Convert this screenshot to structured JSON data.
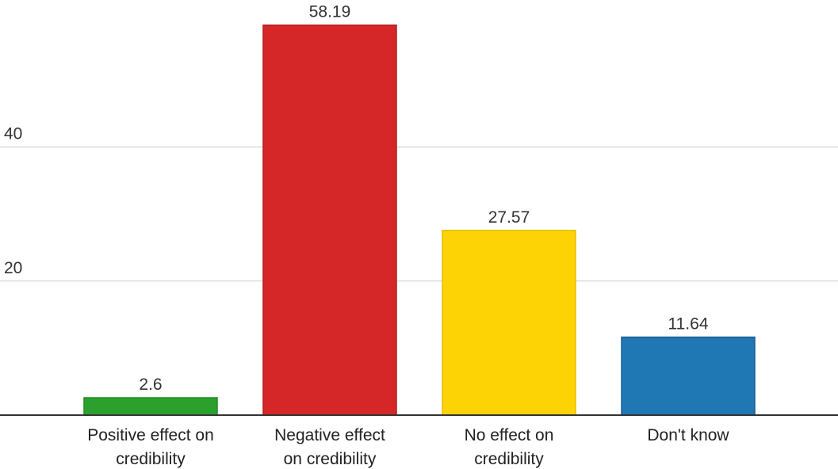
{
  "chart_data": {
    "type": "bar",
    "categories": [
      [
        "Positive effect on",
        "credibility"
      ],
      [
        "Negative effect",
        "on credibility"
      ],
      [
        "No effect on",
        "credibility"
      ],
      [
        "Don't know"
      ]
    ],
    "values": [
      2.6,
      58.19,
      27.57,
      11.64
    ],
    "value_labels": [
      "2.6",
      "58.19",
      "27.57",
      "11.64"
    ],
    "bar_colors": [
      "#2ca02c",
      "#d62728",
      "#fdd306",
      "#1f77b4"
    ],
    "bar_border_colors": [
      "#228b22",
      "#b71c1c",
      "#e6bd00",
      "#1a5f94"
    ],
    "y_ticks": [
      20,
      40
    ],
    "y_tick_labels": [
      "20",
      "40"
    ],
    "ylim": [
      0,
      60
    ],
    "grid": true,
    "legend": false,
    "title": "",
    "xlabel": "",
    "ylabel": ""
  }
}
